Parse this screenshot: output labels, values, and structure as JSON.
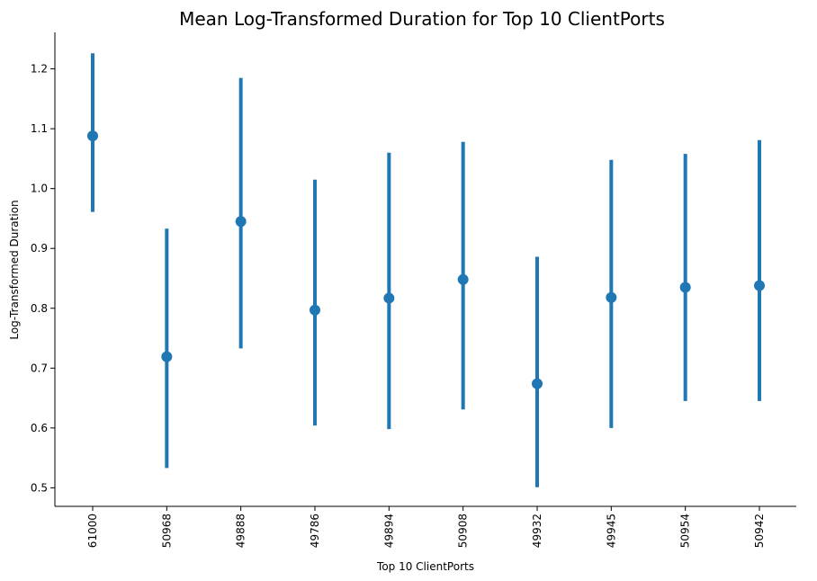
{
  "chart_data": {
    "type": "point",
    "title": "Mean Log-Transformed Duration for Top 10 ClientPorts",
    "xlabel": "Top 10 ClientPorts",
    "ylabel": "Log-Transformed Duration",
    "categories": [
      "61000",
      "50968",
      "49888",
      "49786",
      "49894",
      "50908",
      "49932",
      "49945",
      "50954",
      "50942"
    ],
    "values": [
      1.088,
      0.719,
      0.945,
      0.797,
      0.817,
      0.848,
      0.674,
      0.818,
      0.835,
      0.838
    ],
    "ci_low": [
      0.961,
      0.533,
      0.733,
      0.604,
      0.598,
      0.631,
      0.501,
      0.6,
      0.645,
      0.645
    ],
    "ci_high": [
      1.226,
      0.933,
      1.185,
      1.015,
      1.06,
      1.078,
      0.886,
      1.048,
      1.058,
      1.081
    ],
    "yticks": [
      "0.5",
      "0.6",
      "0.7",
      "0.8",
      "0.9",
      "1.0",
      "1.1",
      "1.2"
    ],
    "ylim": [
      0.469,
      1.261
    ],
    "grid": false,
    "color": "#1f77b4"
  }
}
